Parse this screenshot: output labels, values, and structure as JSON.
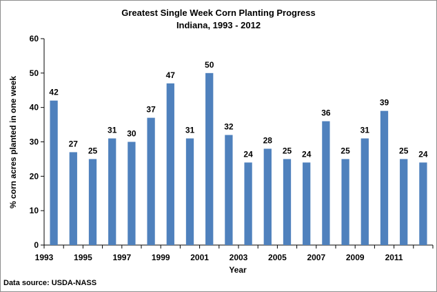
{
  "chart_data": {
    "type": "bar",
    "title": "Greatest Single Week Corn Planting Progress",
    "subtitle": "Indiana, 1993 - 2012",
    "xlabel": "Year",
    "ylabel": "% corn acres planted in one week",
    "source": "Data source: USDA-NASS",
    "ylim": [
      0,
      60
    ],
    "yticks": [
      0,
      10,
      20,
      30,
      40,
      50,
      60
    ],
    "grid": false,
    "legend": "none",
    "bar_color": "#4f81bd",
    "categories": [
      "1993",
      "1994",
      "1995",
      "1996",
      "1997",
      "1998",
      "1999",
      "2000",
      "2001",
      "2002",
      "2003",
      "2004",
      "2005",
      "2006",
      "2007",
      "2008",
      "2009",
      "2010",
      "2011",
      "2012"
    ],
    "xtick_labels": [
      "1993",
      "",
      "1995",
      "",
      "1997",
      "",
      "1999",
      "",
      "2001",
      "",
      "2003",
      "",
      "2005",
      "",
      "2007",
      "",
      "2009",
      "",
      "2011",
      ""
    ],
    "values": [
      42,
      27,
      25,
      31,
      30,
      37,
      47,
      31,
      50,
      32,
      24,
      28,
      25,
      24,
      36,
      25,
      31,
      39,
      25,
      24
    ]
  }
}
